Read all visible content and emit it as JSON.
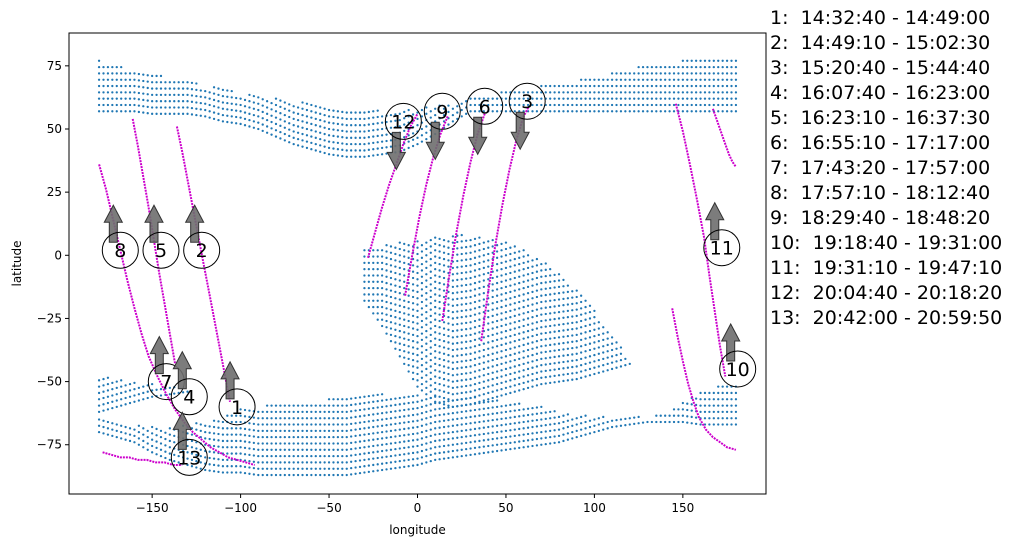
{
  "chart_data": {
    "type": "scatter",
    "title": "",
    "xlabel": "longitude",
    "ylabel": "latitude",
    "xlim": [
      -197,
      197
    ],
    "ylim": [
      -94.5,
      88
    ],
    "xticks": [
      -150,
      -100,
      -50,
      0,
      50,
      100,
      150
    ],
    "yticks": [
      -75,
      -50,
      -25,
      0,
      25,
      50,
      75
    ],
    "grid": false,
    "colors": {
      "dots": "#1f77b4",
      "tracks": "#cc00cc",
      "arrows": "#6e6e6e"
    },
    "coverage_regions": [
      {
        "x": [
          -180,
          180
        ],
        "top": [
          77,
          75,
          73,
          72,
          70,
          69,
          67,
          66,
          64,
          63,
          62,
          61,
          60,
          59,
          58,
          58,
          57,
          57,
          58,
          59,
          60,
          62,
          63,
          65,
          66,
          67,
          68,
          69,
          71,
          72,
          74,
          75,
          76,
          77,
          77,
          78,
          78
        ],
        "bottom": [
          57,
          57,
          57,
          56,
          56,
          56,
          55,
          53,
          52,
          50,
          47,
          44,
          42,
          40,
          39,
          39,
          40,
          41,
          44,
          48,
          53,
          57,
          57,
          57,
          57,
          57,
          57,
          57,
          57,
          57,
          57,
          57,
          57,
          57,
          57,
          57,
          57
        ]
      },
      {
        "x": [
          -30,
          120
        ],
        "top": [
          3,
          4,
          5,
          6,
          7,
          8,
          8,
          7,
          5,
          2,
          -2,
          -7,
          -14,
          -22,
          -31,
          -42
        ],
        "bottom": [
          -18,
          -28,
          -40,
          -52,
          -58,
          -60,
          -59,
          -57,
          -55,
          -53,
          -51,
          -50,
          -49,
          -47,
          -45,
          -43
        ]
      },
      {
        "x": [
          -180,
          -130
        ],
        "top": [
          -48,
          -49,
          -50,
          -51,
          -52,
          -53
        ],
        "bottom": [
          -62,
          -60,
          -58,
          -56,
          -55,
          -54
        ]
      },
      {
        "x": [
          -180,
          180
        ],
        "top": [
          -64,
          -66,
          -67,
          -68,
          -68,
          -67,
          -66,
          -64,
          -61,
          -60,
          -59,
          -58,
          -58,
          -57,
          -56,
          -55,
          -55,
          -55,
          -55,
          -56,
          -56,
          -56,
          -57,
          -58,
          -59,
          -60,
          -62,
          -63,
          -64,
          -64,
          -64,
          -64,
          -63,
          -58,
          -54,
          -52,
          -50
        ],
        "bottom": [
          -70,
          -72,
          -74,
          -78,
          -81,
          -83,
          -85,
          -86,
          -86,
          -87,
          -87,
          -87,
          -87,
          -87,
          -87,
          -86,
          -85,
          -84,
          -83,
          -81,
          -80,
          -79,
          -78,
          -77,
          -76,
          -75,
          -74,
          -72,
          -70,
          -68,
          -67,
          -66,
          -66,
          -66,
          -67,
          -67,
          -67
        ]
      }
    ],
    "tracks": [
      {
        "x": [
          -180,
          -176,
          -172,
          -168,
          -164,
          -160,
          -156,
          -152,
          -147,
          -142,
          -137,
          -132,
          -127,
          -122,
          -117,
          -112,
          -107,
          -102,
          -97,
          -92
        ],
        "y": [
          36,
          26,
          14,
          2,
          -10,
          -21,
          -31,
          -40,
          -48,
          -55,
          -61,
          -66,
          -70,
          -73,
          -76,
          -78,
          -80,
          -81,
          -82,
          -83
        ]
      },
      {
        "x": [
          -161,
          -158,
          -155,
          -152,
          -149,
          -146,
          -143,
          -140,
          -137
        ],
        "y": [
          54,
          43,
          31,
          19,
          6,
          -7,
          -19,
          -31,
          -43
        ]
      },
      {
        "x": [
          -136,
          -133,
          -130,
          -127,
          -124,
          -121,
          -118,
          -115,
          -112,
          -109,
          -106
        ],
        "y": [
          51,
          41,
          30,
          19,
          8,
          -3,
          -14,
          -25,
          -36,
          -47,
          -58
        ]
      },
      {
        "x": [
          -28,
          -24,
          -20,
          -16,
          -12,
          -8,
          -4,
          0
        ],
        "y": [
          -1,
          9,
          19,
          28,
          36,
          44,
          51,
          56
        ]
      },
      {
        "x": [
          -7,
          -3,
          1,
          5,
          9,
          13,
          17
        ],
        "y": [
          -16,
          0,
          15,
          28,
          39,
          48,
          55
        ]
      },
      {
        "x": [
          14,
          18,
          22,
          26,
          30,
          34,
          38
        ],
        "y": [
          -26,
          -8,
          9,
          24,
          37,
          48,
          56
        ]
      },
      {
        "x": [
          36,
          40,
          44,
          48,
          52,
          56,
          60,
          63
        ],
        "y": [
          -34,
          -14,
          4,
          20,
          34,
          46,
          55,
          59
        ]
      },
      {
        "x": [
          146,
          150,
          154,
          158,
          162,
          165,
          168,
          171,
          174
        ],
        "y": [
          60,
          49,
          36,
          22,
          7,
          -8,
          -22,
          -36,
          -48
        ]
      },
      {
        "x": [
          167,
          170,
          173,
          176,
          178,
          180
        ],
        "y": [
          58,
          52,
          46,
          40,
          37,
          35
        ]
      },
      {
        "x": [
          144,
          147,
          150,
          153,
          156,
          159,
          163,
          167,
          171,
          175,
          180
        ],
        "y": [
          -21,
          -32,
          -42,
          -51,
          -58,
          -64,
          -69,
          -72,
          -74,
          -76,
          -77
        ]
      },
      {
        "x": [
          -178,
          -173,
          -168,
          -163,
          -158,
          -153,
          -148,
          -143,
          -138,
          -133
        ],
        "y": [
          -78,
          -79,
          -80,
          -80,
          -81,
          -81,
          -82,
          -82,
          -83,
          -83
        ]
      }
    ],
    "annotations": [
      {
        "label": "8",
        "x": -168,
        "y": 2,
        "dir": "up"
      },
      {
        "label": "5",
        "x": -145,
        "y": 2,
        "dir": "up"
      },
      {
        "label": "2",
        "x": -122,
        "y": 2,
        "dir": "up"
      },
      {
        "label": "7",
        "x": -142,
        "y": -50,
        "dir": "up"
      },
      {
        "label": "4",
        "x": -129,
        "y": -56,
        "dir": "up"
      },
      {
        "label": "1",
        "x": -102,
        "y": -60,
        "dir": "up"
      },
      {
        "label": "13",
        "x": -129,
        "y": -80,
        "dir": "up"
      },
      {
        "label": "12",
        "x": -8,
        "y": 53,
        "dir": "down"
      },
      {
        "label": "9",
        "x": 14,
        "y": 57,
        "dir": "down"
      },
      {
        "label": "6",
        "x": 38,
        "y": 59,
        "dir": "down"
      },
      {
        "label": "3",
        "x": 62,
        "y": 61,
        "dir": "down"
      },
      {
        "label": "11",
        "x": 172,
        "y": 3,
        "dir": "up"
      },
      {
        "label": "10",
        "x": 181,
        "y": -45,
        "dir": "up"
      }
    ],
    "legend": [
      "1:  14:32:40 - 14:49:00",
      "2:  14:49:10 - 15:02:30",
      "3:  15:20:40 - 15:44:40",
      "4:  16:07:40 - 16:23:00",
      "5:  16:23:10 - 16:37:30",
      "6:  16:55:10 - 17:17:00",
      "7:  17:43:20 - 17:57:00",
      "8:  17:57:10 - 18:12:40",
      "9:  18:29:40 - 18:48:20",
      "10:  19:18:40 - 19:31:00",
      "11:  19:31:10 - 19:47:10",
      "12:  20:04:40 - 20:18:20",
      "13:  20:42:00 - 20:59:50"
    ]
  }
}
